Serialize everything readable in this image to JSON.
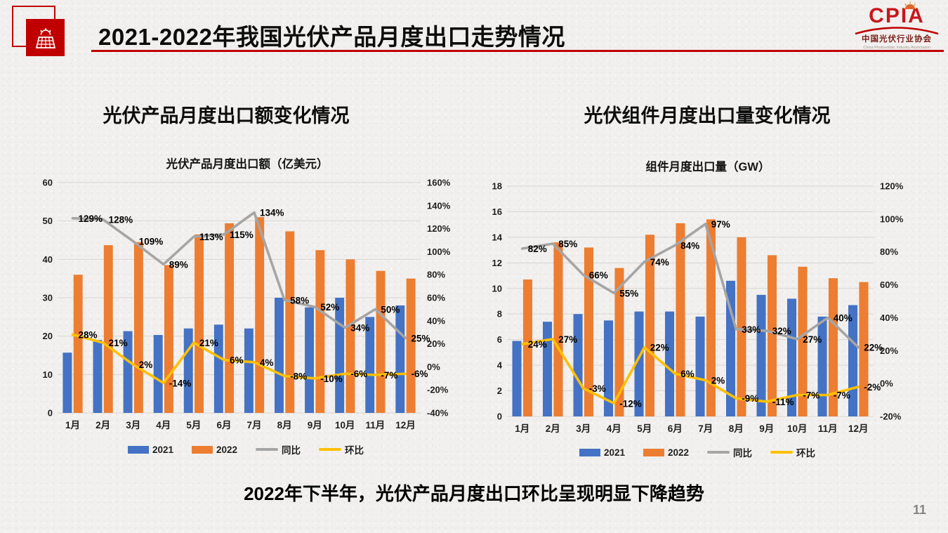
{
  "slide": {
    "title": "2021-2022年我国光伏产品月度出口走势情况",
    "footer_statement": "2022年下半年，光伏产品月度出口环比呈现明显下降趋势",
    "page_number": "11"
  },
  "logo": {
    "acronym": "CPIA",
    "name_cn": "中国光伏行业协会",
    "name_en": "China Photovoltaic Industry Association"
  },
  "panels": [
    {
      "heading": "光伏产品月度出口额变化情况",
      "chart_title": "光伏产品月度出口额（亿美元）"
    },
    {
      "heading": "光伏组件月度出口量变化情况",
      "chart_title": "组件月度出口量（GW）"
    }
  ],
  "colors": {
    "accent_red": "#C00000",
    "bar_2021": "#4472C4",
    "bar_2022": "#ED7D31",
    "line_yoy": "#A5A5A5",
    "line_mom": "#FFC000",
    "gridline": "#d8d6d3",
    "page_number_gray": "#848484"
  },
  "chart_data": [
    {
      "type": "bar",
      "title": "光伏产品月度出口额（亿美元）",
      "categories": [
        "1月",
        "2月",
        "3月",
        "4月",
        "5月",
        "6月",
        "7月",
        "8月",
        "9月",
        "10月",
        "11月",
        "12月"
      ],
      "left_axis": {
        "ticks": [
          0,
          10,
          20,
          30,
          40,
          50,
          60
        ]
      },
      "right_axis": {
        "ticks": [
          -40,
          -20,
          0,
          20,
          40,
          60,
          80,
          100,
          120,
          140,
          160
        ],
        "suffix": "%"
      },
      "grid": true,
      "legend_position": "bottom",
      "series": [
        {
          "name": "2021",
          "kind": "bar",
          "axis": "left",
          "color": "#4472C4",
          "values": [
            15.7,
            19,
            21.3,
            20.3,
            22,
            23,
            22,
            30,
            27.5,
            30,
            25,
            28
          ]
        },
        {
          "name": "2022",
          "kind": "bar",
          "axis": "left",
          "color": "#ED7D31",
          "values": [
            36,
            43.7,
            44.5,
            38.5,
            46.5,
            49.4,
            51,
            47.3,
            42.4,
            40,
            37,
            35
          ]
        },
        {
          "name": "同比",
          "kind": "line",
          "axis": "right",
          "color": "#A5A5A5",
          "values": [
            129,
            128,
            109,
            89,
            113,
            115,
            134,
            58,
            52,
            34,
            50,
            25
          ],
          "labels": [
            "129%",
            "128%",
            "109%",
            "89%",
            "113%",
            "115%",
            "134%",
            "58%",
            "52%",
            "34%",
            "50%",
            "25%"
          ]
        },
        {
          "name": "环比",
          "kind": "line",
          "axis": "right",
          "color": "#FFC000",
          "values": [
            28,
            21,
            2,
            -14,
            21,
            6,
            4,
            -8,
            -10,
            -6,
            -7,
            -6
          ],
          "labels": [
            "28%",
            "21%",
            "2%",
            "-14%",
            "21%",
            "6%",
            "4%",
            "-8%",
            "-10%",
            "-6%",
            "-7%",
            "-6%"
          ]
        }
      ]
    },
    {
      "type": "bar",
      "title": "组件月度出口量（GW）",
      "categories": [
        "1月",
        "2月",
        "3月",
        "4月",
        "5月",
        "6月",
        "7月",
        "8月",
        "9月",
        "10月",
        "11月",
        "12月"
      ],
      "left_axis": {
        "ticks": [
          0,
          2,
          4,
          6,
          8,
          10,
          12,
          14,
          16,
          18
        ]
      },
      "right_axis": {
        "ticks": [
          -20,
          0,
          20,
          40,
          60,
          80,
          100,
          120
        ],
        "suffix": "%"
      },
      "grid": true,
      "legend_position": "bottom",
      "series": [
        {
          "name": "2021",
          "kind": "bar",
          "axis": "left",
          "color": "#4472C4",
          "values": [
            5.9,
            7.4,
            8.0,
            7.5,
            8.2,
            8.2,
            7.8,
            10.6,
            9.5,
            9.2,
            7.8,
            8.7
          ]
        },
        {
          "name": "2022",
          "kind": "bar",
          "axis": "left",
          "color": "#ED7D31",
          "values": [
            10.7,
            13.6,
            13.2,
            11.6,
            14.2,
            15.1,
            15.4,
            14.0,
            12.6,
            11.7,
            10.8,
            10.5
          ]
        },
        {
          "name": "同比",
          "kind": "line",
          "axis": "right",
          "color": "#A5A5A5",
          "values": [
            82,
            85,
            66,
            55,
            74,
            84,
            97,
            33,
            32,
            27,
            40,
            22
          ],
          "labels": [
            "82%",
            "85%",
            "66%",
            "55%",
            "74%",
            "84%",
            "97%",
            "33%",
            "32%",
            "27%",
            "40%",
            "22%"
          ]
        },
        {
          "name": "环比",
          "kind": "line",
          "axis": "right",
          "color": "#FFC000",
          "values": [
            24,
            27,
            -3,
            -12,
            22,
            6,
            2,
            -9,
            -11,
            -7,
            -7,
            -2
          ],
          "labels": [
            "24%",
            "27%",
            "-3%",
            "-12%",
            "22%",
            "6%",
            "2%",
            "-9%",
            "-11%",
            "-7%",
            "-7%",
            "-2%"
          ]
        }
      ]
    }
  ]
}
